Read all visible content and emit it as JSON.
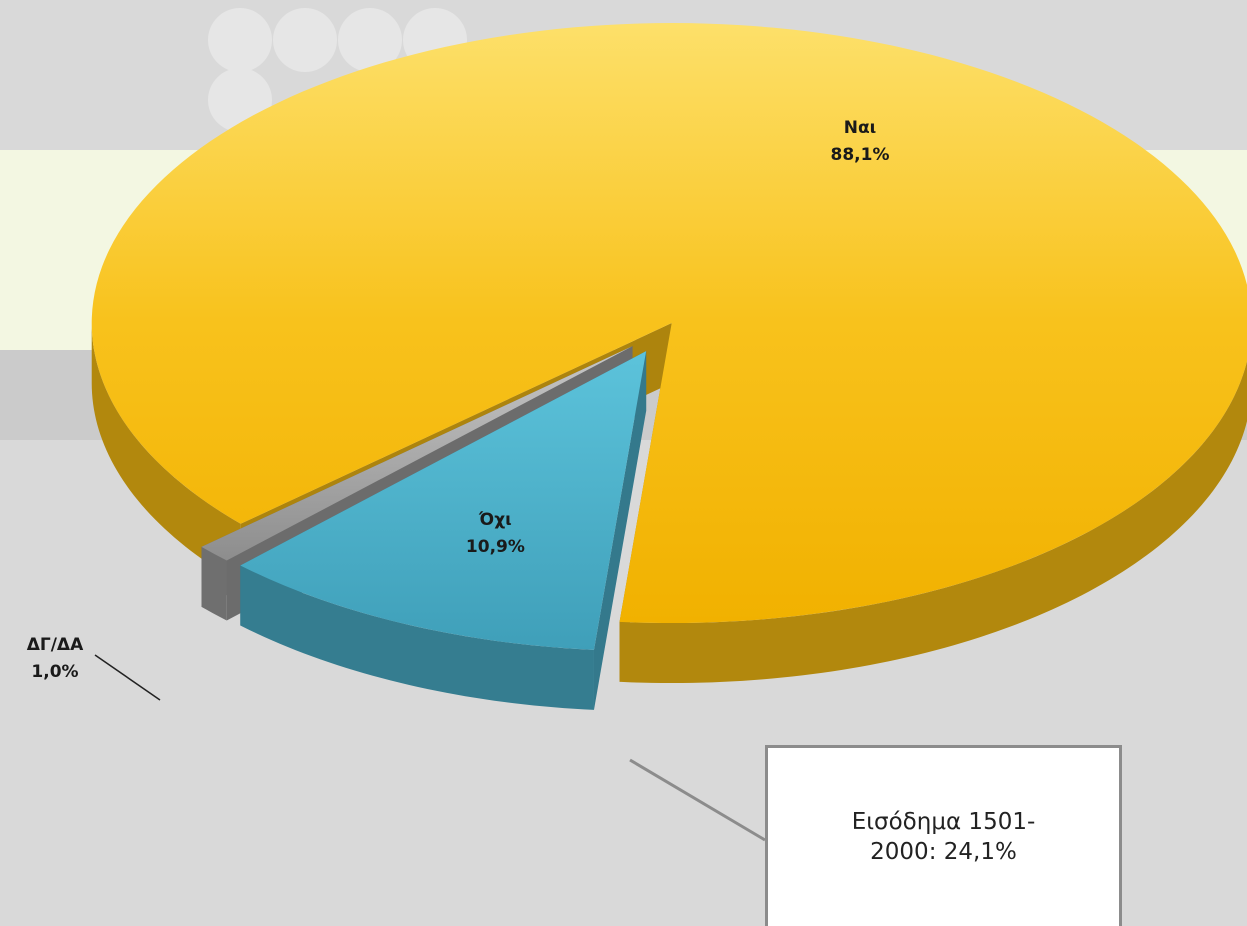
{
  "chart_data": {
    "type": "pie",
    "categories": [
      "Ναι",
      "Όχι",
      "ΔΓ/ΔΑ"
    ],
    "values": [
      88.1,
      10.9,
      1.0
    ],
    "value_labels": [
      "88,1%",
      "10,9%",
      "1,0%"
    ],
    "colors": [
      "#f7bd12",
      "#4aadc8",
      "#9a9a9a"
    ],
    "annotation": "Εισόδημα 1501-2000: 24,1%"
  }
}
